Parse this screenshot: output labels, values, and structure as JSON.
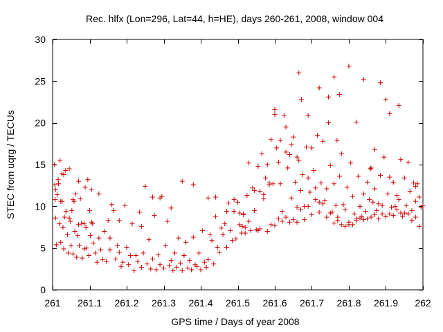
{
  "chart_data": {
    "type": "scatter",
    "title": "Rec. hlfx (Lon=296, Lat=44, h=HE), days 260-261, 2008, window 004",
    "xlabel": "GPS time / Days of year 2008",
    "ylabel": "STEC from uqrg / TECUs",
    "xlim": [
      261,
      262
    ],
    "ylim": [
      0,
      30
    ],
    "xticks": [
      261,
      261.1,
      261.2,
      261.3,
      261.4,
      261.5,
      261.6,
      261.7,
      261.8,
      261.9,
      262
    ],
    "xtick_labels": [
      "261",
      "261.1",
      "261.2",
      "261.3",
      "261.4",
      "261.5",
      "261.6",
      "261.7",
      "261.8",
      "261.9",
      "262"
    ],
    "yticks": [
      0,
      5,
      10,
      15,
      20,
      25,
      30
    ],
    "ytick_labels": [
      "0",
      "5",
      "10",
      "15",
      "20",
      "25",
      "30"
    ],
    "grid": false,
    "marker": "+",
    "color": "#cc0000",
    "series": [
      {
        "name": "STEC",
        "x": [
          261.005,
          261.006,
          261.007,
          261.008,
          261.01,
          261.015,
          261.016,
          261.018,
          261.02,
          261.022,
          261.025,
          261.026,
          261.028,
          261.03,
          261.032,
          261.035,
          261.036,
          261.04,
          261.042,
          261.045,
          261.048,
          261.05,
          261.052,
          261.055,
          261.058,
          261.06,
          261.062,
          261.065,
          261.068,
          261.07,
          261.072,
          261.075,
          261.078,
          261.08,
          261.085,
          261.088,
          261.09,
          261.092,
          261.095,
          261.098,
          261.1,
          261.102,
          261.105,
          261.108,
          261.11,
          261.115,
          261.12,
          261.125,
          261.13,
          261.135,
          261.14,
          261.145,
          261.15,
          261.155,
          261.16,
          261.165,
          261.17,
          261.175,
          261.18,
          261.185,
          261.19,
          261.195,
          261.2,
          261.205,
          261.21,
          261.215,
          261.22,
          261.225,
          261.23,
          261.235,
          261.24,
          261.245,
          261.25,
          261.255,
          261.26,
          261.265,
          261.27,
          261.275,
          261.28,
          261.285,
          261.29,
          261.295,
          261.3,
          261.305,
          261.31,
          261.315,
          261.32,
          261.325,
          261.33,
          261.335,
          261.34,
          261.345,
          261.35,
          261.355,
          261.36,
          261.365,
          261.37,
          261.375,
          261.38,
          261.385,
          261.39,
          261.395,
          261.4,
          261.405,
          261.41,
          261.415,
          261.42,
          261.425,
          261.43,
          261.435,
          261.44,
          261.445,
          261.45,
          261.455,
          261.46,
          261.465,
          261.47,
          261.475,
          261.48,
          261.485,
          261.49,
          261.495,
          261.5,
          261.505,
          261.51,
          261.515,
          261.52,
          261.525,
          261.53,
          261.535,
          261.54,
          261.545,
          261.55,
          261.555,
          261.56,
          261.565,
          261.57,
          261.575,
          261.58,
          261.585,
          261.59,
          261.595,
          261.6,
          261.605,
          261.61,
          261.615,
          261.62,
          261.625,
          261.63,
          261.635,
          261.64,
          261.645,
          261.65,
          261.655,
          261.66,
          261.665,
          261.67,
          261.675,
          261.68,
          261.685,
          261.69,
          261.695,
          261.7,
          261.705,
          261.71,
          261.715,
          261.72,
          261.725,
          261.73,
          261.735,
          261.74,
          261.745,
          261.75,
          261.755,
          261.76,
          261.765,
          261.77,
          261.775,
          261.78,
          261.785,
          261.79,
          261.795,
          261.8,
          261.805,
          261.81,
          261.815,
          261.82,
          261.825,
          261.83,
          261.835,
          261.84,
          261.845,
          261.85,
          261.855,
          261.86,
          261.865,
          261.87,
          261.875,
          261.88,
          261.885,
          261.89,
          261.895,
          261.9,
          261.905,
          261.91,
          261.915,
          261.92,
          261.925,
          261.93,
          261.935,
          261.94,
          261.945,
          261.95,
          261.955,
          261.96,
          261.965,
          261.97,
          261.975,
          261.98,
          261.985,
          261.99,
          261.995,
          262.0,
          261.008,
          261.012,
          261.022,
          261.03,
          261.045,
          261.055,
          261.07,
          261.085,
          261.105,
          261.125,
          261.155,
          261.18,
          261.24,
          261.27,
          261.29,
          261.32,
          261.35,
          261.38,
          261.42,
          261.44,
          261.47,
          261.49,
          261.505,
          261.512,
          261.515,
          261.545,
          261.57,
          261.585,
          261.6,
          261.615,
          261.63,
          261.645,
          261.66,
          261.665,
          261.672,
          261.69,
          261.72,
          261.745,
          261.76,
          261.768,
          261.775,
          261.8,
          261.82,
          261.84,
          261.858,
          261.87,
          261.885,
          261.9,
          261.91,
          261.935,
          261.96,
          261.98,
          261.52,
          261.555,
          261.58,
          261.6,
          261.62,
          261.64,
          261.66,
          261.68,
          261.7,
          261.72,
          261.74,
          261.76,
          261.78,
          261.8,
          261.82,
          261.84,
          261.86,
          261.88,
          261.9,
          261.92,
          261.94,
          261.96,
          261.98,
          261.53,
          261.56,
          261.59,
          261.61,
          261.63,
          261.65,
          261.67,
          261.69,
          261.71,
          261.73,
          261.75,
          261.77,
          261.79,
          261.81,
          261.83,
          261.85,
          261.87,
          261.89,
          261.91,
          261.93,
          261.95,
          261.97,
          261.99
        ],
        "y": [
          15.0,
          12.6,
          10.8,
          8.6,
          5.4,
          13.2,
          12.7,
          7.9,
          15.5,
          5.7,
          13.9,
          10.6,
          7.5,
          4.9,
          8.7,
          14.3,
          9.4,
          6.6,
          4.4,
          14.5,
          8.2,
          5.3,
          9.5,
          4.3,
          10.6,
          7.0,
          11.5,
          3.9,
          6.5,
          7.8,
          5.3,
          10.9,
          8.0,
          3.8,
          4.9,
          12.3,
          7.5,
          5.0,
          13.2,
          4.1,
          9.5,
          6.5,
          8.1,
          7.9,
          5.6,
          4.4,
          3.3,
          6.2,
          4.8,
          3.6,
          7.0,
          3.4,
          8.3,
          4.8,
          10.2,
          9.5,
          3.7,
          5.3,
          4.5,
          2.8,
          3.3,
          10.1,
          5.1,
          3.0,
          4.1,
          7.9,
          2.3,
          4.1,
          3.4,
          9.3,
          2.7,
          4.4,
          12.4,
          3.1,
          6.0,
          2.5,
          3.7,
          8.9,
          2.4,
          4.2,
          3.0,
          11.2,
          2.6,
          5.3,
          8.2,
          2.9,
          3.5,
          2.3,
          4.4,
          2.7,
          6.2,
          3.2,
          2.3,
          4.1,
          5.7,
          2.6,
          3.5,
          2.4,
          6.3,
          3.0,
          2.8,
          4.4,
          2.4,
          7.1,
          3.3,
          2.7,
          3.6,
          6.6,
          5.9,
          3.1,
          8.8,
          5.1,
          4.5,
          7.4,
          6.6,
          7.9,
          5.1,
          10.4,
          7.1,
          5.9,
          9.4,
          6.1,
          10.5,
          7.8,
          6.8,
          9.1,
          7.5,
          11.3,
          15.2,
          7.1,
          12.2,
          9.5,
          7.2,
          14.8,
          11.8,
          16.3,
          10.9,
          13.4,
          15.0,
          12.6,
          18.0,
          12.7,
          21.0,
          17.0,
          15.3,
          12.7,
          9.4,
          20.9,
          19.5,
          14.6,
          16.2,
          11.0,
          18.3,
          12.9,
          9.9,
          15.5,
          11.9,
          13.8,
          10.0,
          17.1,
          13.4,
          11.7,
          17.0,
          14.3,
          12.2,
          18.5,
          10.5,
          12.8,
          17.8,
          10.7,
          12.1,
          20.0,
          14.9,
          9.3,
          12.7,
          10.1,
          8.7,
          13.6,
          16.3,
          10.2,
          9.6,
          12.3,
          7.8,
          15.2,
          11.2,
          9.1,
          8.5,
          13.6,
          10.0,
          8.8,
          11.5,
          9.4,
          12.9,
          10.8,
          14.6,
          10.5,
          12.1,
          9.5,
          10.3,
          13.7,
          10.1,
          15.9,
          8.8,
          11.5,
          13.5,
          9.9,
          12.9,
          10.0,
          11.3,
          10.8,
          15.6,
          8.8,
          13.4,
          10.1,
          9.1,
          11.8,
          9.5,
          12.8,
          10.6,
          12.7,
          11.1,
          9.9,
          10.1,
          12.0,
          11.4,
          10.6,
          13.8,
          8.6,
          10.8,
          13.0,
          7.9,
          12.0,
          11.5,
          6.2,
          8.3,
          7.6,
          11.1,
          11.0,
          9.8,
          13.0,
          12.6,
          11.0,
          11.1,
          9.4,
          10.8,
          9.2,
          7.6,
          9.0,
          11.9,
          11.4,
          12.8,
          21.6,
          17.9,
          16.5,
          17.4,
          15.9,
          26.0,
          22.8,
          20.9,
          24.2,
          23.1,
          25.5,
          17.9,
          23.4,
          26.8,
          20.1,
          25.2,
          14.5,
          16.8,
          24.8,
          22.8,
          21.1,
          22.1,
          15.3,
          12.4,
          6.8,
          7.1,
          7.0,
          7.7,
          8.2,
          8.1,
          8.1,
          8.4,
          9.0,
          9.3,
          8.7,
          8.0,
          7.8,
          8.1,
          8.3,
          8.4,
          8.7,
          8.5,
          8.8,
          8.9,
          9.2,
          9.1,
          8.7,
          8.2,
          7.3,
          7.8,
          8.5,
          8.7,
          8.4,
          9.6,
          10.0,
          10.8,
          10.3,
          9.2,
          8.3,
          7.6,
          7.8,
          8.6,
          8.5,
          9.0,
          9.1,
          9.1,
          9.6,
          9.2,
          8.3,
          7.6
        ]
      }
    ]
  }
}
